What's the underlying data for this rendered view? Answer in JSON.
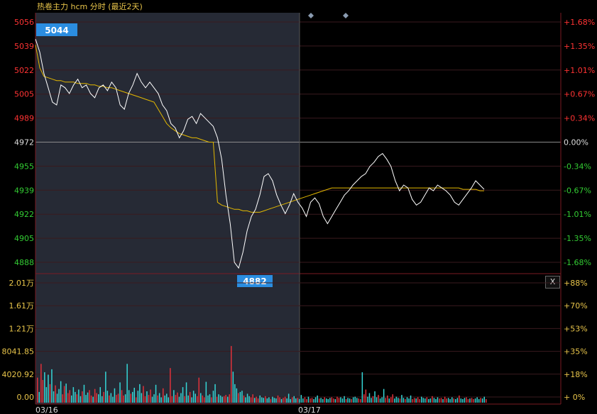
{
  "title": "热卷主力 hcm 分时 (最近2天)",
  "close_button": "X",
  "colors": {
    "background": "#000000",
    "prev_day_shade": "#262a35",
    "price_line": "#ffffff",
    "avg_line": "#e3b800",
    "up": "#ff3333",
    "down": "#33cc33",
    "neutral": "#dddddd",
    "volume_up": "#e0313a",
    "volume_down": "#35d6d6",
    "grid": "#40131a",
    "marker": "#2b8de0"
  },
  "chart_data": [
    {
      "type": "line",
      "name": "price",
      "y_ticks_left": [
        "5056",
        "5039",
        "5022",
        "5005",
        "4989",
        "4972",
        "4955",
        "4939",
        "4922",
        "4905",
        "4888"
      ],
      "y_ticks_right": [
        "+1.68%",
        "+1.35%",
        "+1.01%",
        "+0.67%",
        "+0.34%",
        "0.00%",
        "-0.34%",
        "-0.67%",
        "-1.01%",
        "-1.35%",
        "-1.68%"
      ],
      "ylim": [
        4888,
        5056
      ],
      "reference_price": 4972,
      "x_labels": [
        "03/16",
        "03/17"
      ],
      "high_label": "5044",
      "low_label": "4882",
      "series": [
        {
          "values": [
            5044,
            5035,
            5020,
            5010,
            5000,
            4998,
            5012,
            5010,
            5006,
            5012,
            5016,
            5010,
            5012,
            5006,
            5003,
            5010,
            5012,
            5008,
            5014,
            5010,
            4998,
            4995,
            5006,
            5012,
            5020,
            5014,
            5010,
            5014,
            5010,
            5006,
            4998,
            4994,
            4985,
            4982,
            4975,
            4980,
            4988,
            4990,
            4985,
            4992,
            4989,
            4986,
            4983,
            4975,
            4960,
            4935,
            4915,
            4888,
            4884,
            4895,
            4910,
            4920,
            4925,
            4935,
            4948,
            4950,
            4945,
            4935,
            4928,
            4922,
            4928,
            4936,
            4930,
            4926,
            4920,
            4930,
            4933,
            4929,
            4920,
            4915,
            4920,
            4925,
            4930,
            4935,
            4938,
            4942,
            4945,
            4948,
            4950,
            4955,
            4958,
            4962,
            4964,
            4960,
            4955,
            4945,
            4938,
            4942,
            4940,
            4932,
            4928,
            4930,
            4935,
            4940,
            4938,
            4942,
            4940,
            4938,
            4935,
            4930,
            4928,
            4932,
            4936,
            4940,
            4945,
            4942,
            4939
          ]
        },
        {
          "values": [
            5040,
            5024,
            5018,
            5017,
            5016,
            5015,
            5015,
            5014,
            5014,
            5014,
            5013,
            5013,
            5013,
            5012,
            5012,
            5011,
            5011,
            5010,
            5010,
            5009,
            5008,
            5007,
            5006,
            5005,
            5004,
            5003,
            5002,
            5001,
            5000,
            4995,
            4990,
            4985,
            4982,
            4980,
            4978,
            4977,
            4976,
            4975,
            4975,
            4974,
            4973,
            4972,
            4972,
            4930,
            4928,
            4927,
            4926,
            4925,
            4925,
            4924,
            4924,
            4923,
            4923,
            4923,
            4924,
            4925,
            4926,
            4927,
            4928,
            4929,
            4930,
            4931,
            4932,
            4933,
            4934,
            4935,
            4936,
            4937,
            4938,
            4939,
            4940,
            4940,
            4940,
            4940,
            4940,
            4940,
            4940,
            4940,
            4940,
            4940,
            4940,
            4940,
            4940,
            4940,
            4940,
            4940,
            4940,
            4940,
            4940,
            4940,
            4940,
            4940,
            4940,
            4940,
            4940,
            4940,
            4940,
            4940,
            4940,
            4940,
            4940,
            4939,
            4939,
            4939,
            4939,
            4938,
            4938
          ]
        }
      ]
    },
    {
      "type": "bar",
      "name": "volume",
      "y_ticks_left": [
        "2.01万",
        "1.61万",
        "1.21万",
        "8041.85",
        "4020.92",
        "0.00"
      ],
      "y_ticks_right": [
        "+88%",
        "+70%",
        "+53%",
        "+35%",
        "+18%",
        "+ 0%"
      ],
      "ylim": [
        0,
        20100
      ],
      "series": [
        {
          "values": [
            4200,
            1800,
            6500,
            3800,
            5100,
            2600,
            4700,
            3100,
            5600,
            1900,
            2900,
            1500,
            2300,
            3600,
            1400,
            2800,
            3200,
            1600,
            2100,
            1200,
            2600,
            1800,
            1400,
            2200,
            1100,
            1900,
            3000,
            1300,
            1700,
            2100,
            1200,
            1000,
            2300,
            1600,
            1400,
            2600,
            1100,
            1800,
            5200,
            2000,
            1200,
            1600,
            1000,
            2400,
            1300,
            1500,
            3400,
            2100,
            1200,
            1400,
            6500,
            2100,
            1500,
            1800,
            2500,
            900,
            2000,
            3100,
            1600,
            2800,
            1100,
            1900,
            1300,
            2200,
            1000,
            1400,
            3000,
            1200,
            1600,
            900,
            2400,
            1200,
            1500,
            900,
            5800,
            1100,
            2100,
            1300,
            1700,
            1000,
            1600,
            2600,
            1100,
            3400,
            1200,
            1800,
            900,
            2000,
            1500,
            1100,
            4200,
            1600,
            1200,
            900,
            3500,
            1200,
            1400,
            900,
            2000,
            3100,
            1000,
            1400,
            1200,
            1000,
            1100,
            1300,
            1000,
            1400,
            9500,
            5200,
            3100,
            2400,
            1600,
            1800,
            2000,
            1200,
            900,
            1500,
            1100,
            900,
            1400,
            800,
            1000,
            700,
            1200,
            900,
            800,
            1100,
            700,
            900,
            600,
            1000,
            800,
            700,
            1200,
            900,
            600,
            800,
            1000,
            700,
            1500,
            600,
            900,
            1100,
            700,
            800,
            600,
            1300,
            700,
            900,
            600,
            1000,
            700,
            800,
            600,
            900,
            1200,
            700,
            800,
            600,
            900,
            700,
            600,
            800,
            900,
            700,
            600,
            1000,
            800,
            900,
            700,
            1100,
            600,
            800,
            700,
            600,
            900,
            1000,
            800,
            700,
            600,
            5100,
            1400,
            2200,
            1000,
            1600,
            800,
            1100,
            1900,
            900,
            1300,
            700,
            900,
            2300,
            800,
            1200,
            700,
            900,
            1400,
            700,
            1000,
            800,
            700,
            1300,
            800,
            600,
            900,
            700,
            1200,
            600,
            800,
            700,
            900,
            600,
            1000,
            800,
            700,
            900,
            600,
            700,
            1100,
            800,
            600,
            900,
            700,
            800,
            600,
            1000,
            700,
            800,
            600,
            900,
            700,
            600,
            800,
            1200,
            700,
            600,
            800,
            900,
            600,
            700,
            800,
            600,
            700,
            900,
            600,
            800,
            700,
            1000,
            600
          ]
        }
      ]
    }
  ]
}
